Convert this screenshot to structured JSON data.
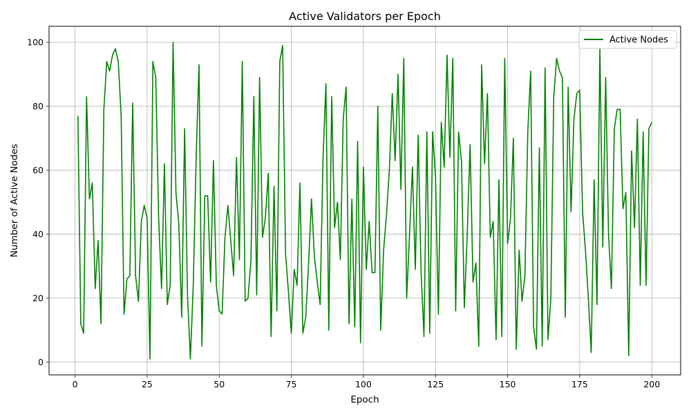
{
  "chart_data": {
    "type": "line",
    "title": "Active Validators per Epoch",
    "xlabel": "Epoch",
    "ylabel": "Number of Active Nodes",
    "xlim": [
      -9,
      210
    ],
    "ylim": [
      -4,
      105
    ],
    "xticks": [
      0,
      25,
      50,
      75,
      100,
      125,
      150,
      175,
      200
    ],
    "yticks": [
      0,
      20,
      40,
      60,
      80,
      100
    ],
    "grid": true,
    "legend_position": "top-right",
    "colors": {
      "line": "#008000",
      "grid": "#b0b0b0",
      "axis": "#000000"
    },
    "series": [
      {
        "name": "Active Nodes",
        "x": [
          1,
          2,
          3,
          4,
          5,
          6,
          7,
          8,
          9,
          10,
          11,
          12,
          13,
          14,
          15,
          16,
          17,
          18,
          19,
          20,
          21,
          22,
          23,
          24,
          25,
          26,
          27,
          28,
          29,
          30,
          31,
          32,
          33,
          34,
          35,
          36,
          37,
          38,
          39,
          40,
          41,
          42,
          43,
          44,
          45,
          46,
          47,
          48,
          49,
          50,
          51,
          52,
          53,
          54,
          55,
          56,
          57,
          58,
          59,
          60,
          61,
          62,
          63,
          64,
          65,
          66,
          67,
          68,
          69,
          70,
          71,
          72,
          73,
          74,
          75,
          76,
          77,
          78,
          79,
          80,
          81,
          82,
          83,
          84,
          85,
          86,
          87,
          88,
          89,
          90,
          91,
          92,
          93,
          94,
          95,
          96,
          97,
          98,
          99,
          100,
          101,
          102,
          103,
          104,
          105,
          106,
          107,
          108,
          109,
          110,
          111,
          112,
          113,
          114,
          115,
          116,
          117,
          118,
          119,
          120,
          121,
          122,
          123,
          124,
          125,
          126,
          127,
          128,
          129,
          130,
          131,
          132,
          133,
          134,
          135,
          136,
          137,
          138,
          139,
          140,
          141,
          142,
          143,
          144,
          145,
          146,
          147,
          148,
          149,
          150,
          151,
          152,
          153,
          154,
          155,
          156,
          157,
          158,
          159,
          160,
          161,
          162,
          163,
          164,
          165,
          166,
          167,
          168,
          169,
          170,
          171,
          172,
          173,
          174,
          175,
          176,
          177,
          178,
          179,
          180,
          181,
          182,
          183,
          184,
          185,
          186,
          187,
          188,
          189,
          190,
          191,
          192,
          193,
          194,
          195,
          196,
          197,
          198,
          199,
          200
        ],
        "values": [
          77,
          12,
          9,
          83,
          51,
          56,
          23,
          38,
          12,
          79,
          94,
          91,
          96,
          98,
          94,
          77,
          15,
          26,
          27,
          81,
          27,
          19,
          44,
          49,
          45,
          1,
          94,
          89,
          45,
          23,
          62,
          18,
          24,
          100,
          53,
          43,
          14,
          73,
          21,
          1,
          24,
          64,
          93,
          5,
          52,
          52,
          25,
          63,
          24,
          16,
          15,
          39,
          49,
          38,
          27,
          64,
          32,
          94,
          19,
          20,
          32,
          83,
          21,
          89,
          39,
          45,
          59,
          8,
          55,
          16,
          94,
          99,
          34,
          22,
          9,
          29,
          24,
          56,
          9,
          14,
          31,
          51,
          33,
          25,
          18,
          64,
          87,
          10,
          83,
          42,
          50,
          32,
          76,
          86,
          12,
          51,
          11,
          69,
          6,
          61,
          29,
          44,
          28,
          28,
          80,
          10,
          35,
          46,
          60,
          84,
          63,
          90,
          54,
          95,
          20,
          40,
          61,
          29,
          71,
          28,
          8,
          72,
          9,
          72,
          58,
          15,
          75,
          61,
          96,
          64,
          95,
          16,
          72,
          63,
          17,
          40,
          68,
          25,
          31,
          5,
          93,
          62,
          84,
          39,
          44,
          7,
          57,
          8,
          95,
          37,
          45,
          70,
          4,
          35,
          19,
          27,
          72,
          91,
          11,
          4,
          67,
          5,
          92,
          7,
          20,
          83,
          95,
          91,
          89,
          14,
          86,
          47,
          76,
          84,
          85,
          47,
          35,
          20,
          3,
          57,
          18,
          98,
          36,
          89,
          40,
          23,
          73,
          79,
          79,
          48,
          53,
          2,
          66,
          42,
          76,
          24,
          72,
          24,
          73,
          75
        ]
      }
    ]
  }
}
